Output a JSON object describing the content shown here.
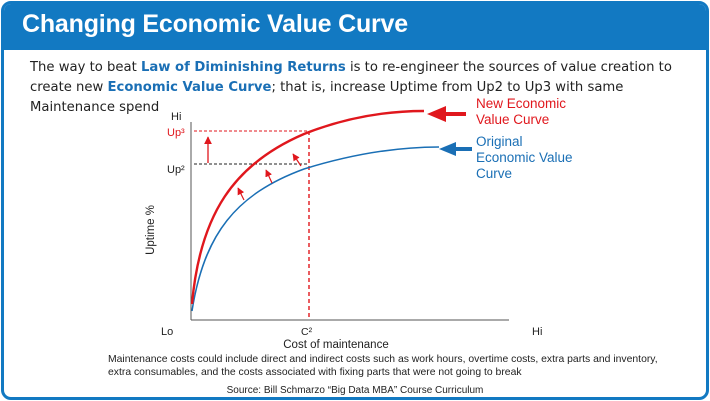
{
  "header": {
    "title": "Changing Economic Value Curve"
  },
  "intro": {
    "part1": "The way to beat ",
    "highlight1": "Law of Diminishing Returns",
    "part2": " is to re-engineer the sources of value creation to create new ",
    "highlight2": "Economic Value Curve",
    "part3": "; that is, increase Uptime from Up2 to Up3 with same Maintenance spend"
  },
  "diagram": {
    "y_axis_title": "Uptime %",
    "x_axis_title": "Cost of maintenance",
    "y_hi": "Hi",
    "y_up3": "Up³",
    "y_up2": "Up²",
    "x_lo": "Lo",
    "x_c2": "C²",
    "x_hi": "Hi",
    "new_curve_label": [
      "New Economic",
      "Value Curve"
    ],
    "original_curve_label": [
      "Original",
      "Economic Value",
      "Curve"
    ],
    "colors": {
      "new_curve": "#e0171d",
      "original_curve": "#1a6fb5",
      "accent": "#1279c2"
    }
  },
  "footer": {
    "note": "Maintenance costs could include direct and indirect costs such as work hours, overtime costs, extra parts and inventory, extra consumables, and the costs associated with fixing parts that were not going to break",
    "source": "Source:  Bill Schmarzo “Big Data MBA” Course Curriculum"
  }
}
